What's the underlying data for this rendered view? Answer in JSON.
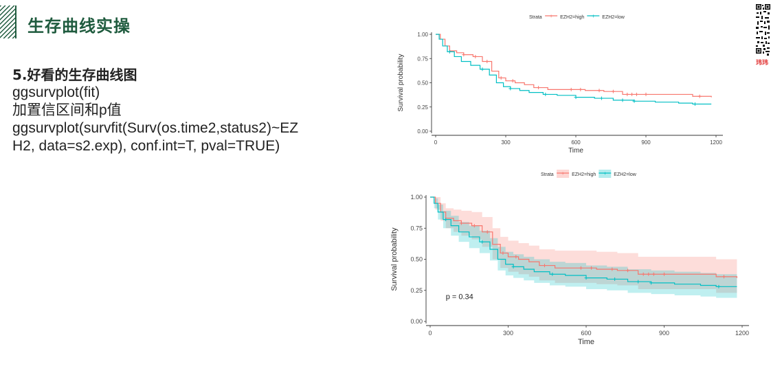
{
  "slide": {
    "title": "生存曲线实操",
    "lines": [
      "5.好看的生存曲线图",
      "ggsurvplot(fit)",
      "加置信区间和p值",
      "ggsurvplot(survfit(Surv(os.time2,status2)~EZ",
      "H2, data=s2.exp), conf.int=T, pval=TRUE)"
    ],
    "qr_caption": "玮玮"
  },
  "colors": {
    "title": "#1f5b3e",
    "high": "#F8766D",
    "low": "#00BFC4"
  },
  "chart_data": [
    {
      "type": "line",
      "xlabel": "Time",
      "ylabel": "Survival probability",
      "xticks": [
        0,
        300,
        600,
        900,
        1200
      ],
      "yticks": [
        0,
        0.25,
        0.5,
        0.75,
        1
      ],
      "ytick_labels": [
        "0.00",
        "0.25",
        "0.50",
        "0.75",
        "1.00"
      ],
      "xlim": [
        0,
        1200
      ],
      "ylim": [
        0,
        1
      ],
      "legend_title": "Strata",
      "legend_position": "top",
      "grid": false,
      "conf_int": false,
      "series": [
        {
          "name": "EZH2=high",
          "x": [
            0,
            20,
            40,
            60,
            90,
            120,
            160,
            200,
            240,
            270,
            300,
            340,
            380,
            420,
            480,
            560,
            640,
            720,
            800,
            900,
            1000,
            1100,
            1180
          ],
          "y": [
            1.0,
            0.95,
            0.88,
            0.83,
            0.81,
            0.79,
            0.77,
            0.72,
            0.62,
            0.55,
            0.52,
            0.5,
            0.48,
            0.45,
            0.43,
            0.43,
            0.42,
            0.41,
            0.38,
            0.38,
            0.38,
            0.36,
            0.35
          ],
          "censor_x": [
            120,
            170,
            220,
            280,
            330,
            440,
            580,
            620,
            700,
            760,
            820,
            840,
            860,
            900,
            1130
          ]
        },
        {
          "name": "EZH2=low",
          "x": [
            0,
            15,
            30,
            50,
            80,
            110,
            150,
            190,
            230,
            260,
            290,
            320,
            360,
            400,
            460,
            520,
            600,
            680,
            760,
            850,
            940,
            1040,
            1100,
            1180
          ],
          "y": [
            1.0,
            0.95,
            0.88,
            0.82,
            0.77,
            0.72,
            0.68,
            0.64,
            0.58,
            0.5,
            0.46,
            0.44,
            0.42,
            0.4,
            0.38,
            0.37,
            0.35,
            0.34,
            0.32,
            0.31,
            0.3,
            0.29,
            0.28,
            0.28
          ],
          "censor_x": [
            60,
            200,
            320,
            470,
            600,
            710,
            800,
            850,
            1110
          ]
        }
      ]
    },
    {
      "type": "line",
      "xlabel": "Time",
      "ylabel": "Survival probability",
      "xticks": [
        0,
        300,
        600,
        900,
        1200
      ],
      "yticks": [
        0,
        0.25,
        0.5,
        0.75,
        1
      ],
      "ytick_labels": [
        "0.00",
        "0.25",
        "0.50",
        "0.75",
        "1.00"
      ],
      "xlim": [
        0,
        1200
      ],
      "ylim": [
        0,
        1
      ],
      "legend_title": "Strata",
      "legend_position": "top",
      "grid": false,
      "conf_int": true,
      "pval_label": "p = 0.34",
      "series": [
        {
          "name": "EZH2=high",
          "x": [
            0,
            20,
            40,
            60,
            90,
            120,
            160,
            200,
            240,
            270,
            300,
            340,
            380,
            420,
            480,
            560,
            640,
            720,
            800,
            900,
            1000,
            1100,
            1180
          ],
          "y": [
            1.0,
            0.95,
            0.88,
            0.83,
            0.81,
            0.79,
            0.77,
            0.72,
            0.62,
            0.55,
            0.52,
            0.5,
            0.48,
            0.45,
            0.43,
            0.43,
            0.42,
            0.41,
            0.38,
            0.38,
            0.38,
            0.36,
            0.35
          ],
          "lower": [
            1.0,
            0.9,
            0.81,
            0.75,
            0.72,
            0.69,
            0.66,
            0.6,
            0.5,
            0.43,
            0.4,
            0.38,
            0.36,
            0.33,
            0.31,
            0.31,
            0.3,
            0.29,
            0.26,
            0.26,
            0.26,
            0.23,
            0.22
          ],
          "upper": [
            1.0,
            1.0,
            0.95,
            0.91,
            0.9,
            0.89,
            0.88,
            0.84,
            0.75,
            0.68,
            0.65,
            0.63,
            0.61,
            0.58,
            0.57,
            0.57,
            0.56,
            0.55,
            0.52,
            0.52,
            0.52,
            0.5,
            0.49
          ],
          "censor_x": [
            120,
            170,
            220,
            280,
            330,
            440,
            580,
            620,
            700,
            760,
            820,
            840,
            860,
            900,
            1130
          ]
        },
        {
          "name": "EZH2=low",
          "x": [
            0,
            15,
            30,
            50,
            80,
            110,
            150,
            190,
            230,
            260,
            290,
            320,
            360,
            400,
            460,
            520,
            600,
            680,
            760,
            850,
            940,
            1040,
            1100,
            1180
          ],
          "y": [
            1.0,
            0.95,
            0.88,
            0.82,
            0.77,
            0.72,
            0.68,
            0.64,
            0.58,
            0.5,
            0.46,
            0.44,
            0.42,
            0.4,
            0.38,
            0.37,
            0.35,
            0.34,
            0.32,
            0.31,
            0.3,
            0.29,
            0.28,
            0.28
          ],
          "lower": [
            1.0,
            0.91,
            0.82,
            0.75,
            0.69,
            0.64,
            0.59,
            0.55,
            0.49,
            0.41,
            0.37,
            0.35,
            0.33,
            0.31,
            0.29,
            0.28,
            0.26,
            0.25,
            0.23,
            0.22,
            0.21,
            0.2,
            0.19,
            0.19
          ],
          "upper": [
            1.0,
            0.99,
            0.94,
            0.89,
            0.85,
            0.8,
            0.77,
            0.73,
            0.67,
            0.6,
            0.56,
            0.54,
            0.52,
            0.5,
            0.48,
            0.47,
            0.45,
            0.44,
            0.42,
            0.41,
            0.4,
            0.39,
            0.38,
            0.38
          ],
          "censor_x": [
            60,
            200,
            320,
            470,
            600,
            710,
            800,
            850,
            1110
          ]
        }
      ]
    }
  ]
}
